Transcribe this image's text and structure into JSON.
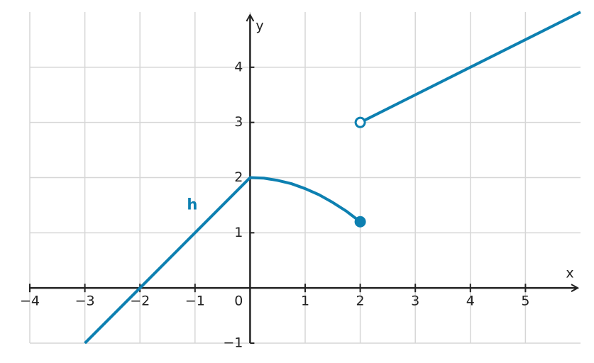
{
  "chart_data": {
    "type": "line",
    "x_label": "x",
    "y_label": "y",
    "xlim": [
      -4,
      6
    ],
    "ylim": [
      -1,
      5
    ],
    "xticks": [
      {
        "value": -4,
        "label": "−4"
      },
      {
        "value": -3,
        "label": "−3"
      },
      {
        "value": -2,
        "label": "−2"
      },
      {
        "value": -1,
        "label": "−1"
      },
      0,
      1,
      2,
      3,
      4,
      5
    ],
    "yticks": [
      {
        "value": -1,
        "label": "−1"
      },
      1,
      2,
      3,
      4
    ],
    "grid": true,
    "series": [
      {
        "name": "h",
        "color": "#0d80b1",
        "x": [
          -3,
          -2,
          -1,
          0,
          0.25,
          0.5,
          0.75,
          1,
          1.25,
          1.5,
          1.75,
          2,
          2,
          2,
          3,
          4,
          5,
          6
        ],
        "values": [
          -1,
          0,
          1,
          2,
          1.99,
          1.95,
          1.89,
          1.8,
          1.69,
          1.55,
          1.39,
          1.2,
          null,
          3,
          3.5,
          4,
          4.5,
          5
        ]
      }
    ],
    "endpoints": [
      {
        "x": 2,
        "y": 1.2,
        "filled": true
      },
      {
        "x": 2,
        "y": 3,
        "filled": false
      }
    ]
  }
}
